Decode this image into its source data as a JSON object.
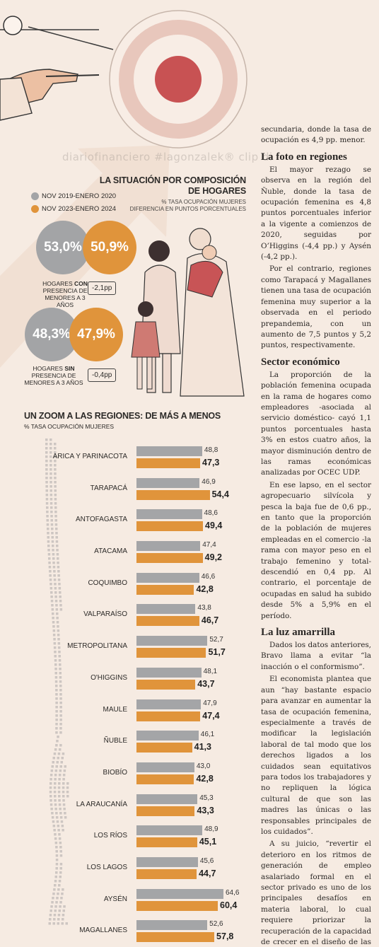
{
  "watermark": "diariofinanciero #lagonzalek® clip di",
  "composition": {
    "title_line1": "LA SITUACIÓN POR COMPOSICIÓN",
    "title_line2": "DE HOGARES",
    "subtitle_line1": "% TASA OCUPACIÓN MUJERES",
    "subtitle_line2": "DIFERENCIA EN PUNTOS PORCENTUALES",
    "legend": [
      {
        "label": "NOV 2019-ENERO 2020",
        "color": "#a3a4a6"
      },
      {
        "label": "NOV 2023-ENERO 2024",
        "color": "#e0943b"
      }
    ],
    "with_children": {
      "before": "53,0%",
      "after": "50,9%",
      "label_line1": "HOGARES",
      "label_emph": "CON",
      "label_line2": "PRESENCIA DE",
      "label_line3": "MENORES A 3 AÑOS",
      "diff": "-2,1pp"
    },
    "without_children": {
      "before": "48,3%",
      "after": "47,9%",
      "label_line1": "HOGARES",
      "label_emph": "SIN",
      "label_line2": "PRESENCIA DE",
      "label_line3": "MENORES A 3 AÑOS",
      "diff": "-0,4pp"
    }
  },
  "regions": {
    "title": "UN ZOOM A LAS REGIONES: DE MÁS A MENOS",
    "subtitle": "% TASA OCUPACIÓN MUJERES"
  },
  "chart_data": {
    "type": "bar",
    "title": "UN ZOOM A LAS REGIONES: DE MÁS A MENOS",
    "ylabel": "% TASA OCUPACIÓN MUJERES",
    "categories": [
      "ARICA Y PARINACOTA",
      "TARAPACÁ",
      "ANTOFAGASTA",
      "ATACAMA",
      "COQUIMBO",
      "VALPARAÍSO",
      "METROPOLITANA",
      "O'HIGGINS",
      "MAULE",
      "ÑUBLE",
      "BIOBÍO",
      "LA ARAUCANÍA",
      "LOS RÍOS",
      "LOS LAGOS",
      "AYSÉN",
      "MAGALLANES"
    ],
    "series": [
      {
        "name": "NOV 2019-ENERO 2020",
        "color": "#a4a5a7",
        "values": [
          48.8,
          46.9,
          48.6,
          47.4,
          46.6,
          43.8,
          52.7,
          48.1,
          47.9,
          46.1,
          43.0,
          45.3,
          48.9,
          45.6,
          64.6,
          52.6
        ],
        "labels": [
          "48,8",
          "46,9",
          "48,6",
          "47,4",
          "46,6",
          "43,8",
          "52,7",
          "48,1",
          "47,9",
          "46,1",
          "43,0",
          "45,3",
          "48,9",
          "45,6",
          "64,6",
          "52,6"
        ]
      },
      {
        "name": "NOV 2023-ENERO 2024",
        "color": "#e0943b",
        "values": [
          47.3,
          54.4,
          49.4,
          49.2,
          42.8,
          46.7,
          51.7,
          43.7,
          47.4,
          41.3,
          42.8,
          43.3,
          45.1,
          44.7,
          60.4,
          57.8
        ],
        "labels": [
          "47,3",
          "54,4",
          "49,4",
          "49,2",
          "42,8",
          "46,7",
          "51,7",
          "43,7",
          "47,4",
          "41,3",
          "42,8",
          "43,3",
          "45,1",
          "44,7",
          "60,4",
          "57,8"
        ]
      }
    ]
  },
  "article": {
    "p0": "secundaria, donde la tasa de ocupación es 4,9 pp. menor.",
    "h1": "La foto en regiones",
    "p1": "El mayor rezago se observa en la región del Ñuble, donde la tasa de ocupación femenina es 4,8 puntos porcentuales inferior a la vigente a comienzos de 2020, seguidas por O’Higgins (-4,4 pp.) y Aysén (-4,2 pp.).",
    "p2": "Por el contrario, regiones como Tarapacá y Magallanes tienen una tasa de ocupación femenina muy superior a la observada en el periodo prepandemia, con un aumento de 7,5 puntos y 5,2 puntos, respectivamente.",
    "h2": "Sector económico",
    "p3": "La proporción de la población femenina ocupada en la rama de hogares como empleadores -asociada al servicio doméstico- cayó 1,1 puntos porcentuales hasta 3% en estos cuatro años, la mayor disminución dentro de las ramas económicas analizadas por OCEC UDP.",
    "p4": "En ese lapso, en el sector agropecuario silvícola y pesca la baja fue de 0,6 pp., en tanto que la proporción de la población de mujeres empleadas en el comercio -la rama con mayor peso en el trabajo femenino y total- descendió en 0,4 pp. Al contrario, el porcentaje de ocupadas en salud ha subido desde 5% a 5,9% en el período.",
    "h3": "La luz amarrilla",
    "p5": "Dados los datos anteriores, Bravo llama a evitar “la inacción o el conformismo”.",
    "p6": "El economista plantea que aun “hay bastante espacio para avanzar en aumentar la tasa de ocupación femenina, especialmente a través de modificar la legislación laboral de tal modo que los derechos ligados a los cuidados sean equitativos para todos los trabajadores y no repliquen la lógica cultural de que son las madres las únicas o las responsables principales de los cuidados”.",
    "p7": "A su juicio, “revertir el deterioro en los ritmos de generación de empleo asalariado formal en el sector privado es uno de los principales desafíos en materia laboral, lo cual requiere priorizar la recuperación de la capacidad de crecer en el diseño de las políticas públicas”."
  }
}
